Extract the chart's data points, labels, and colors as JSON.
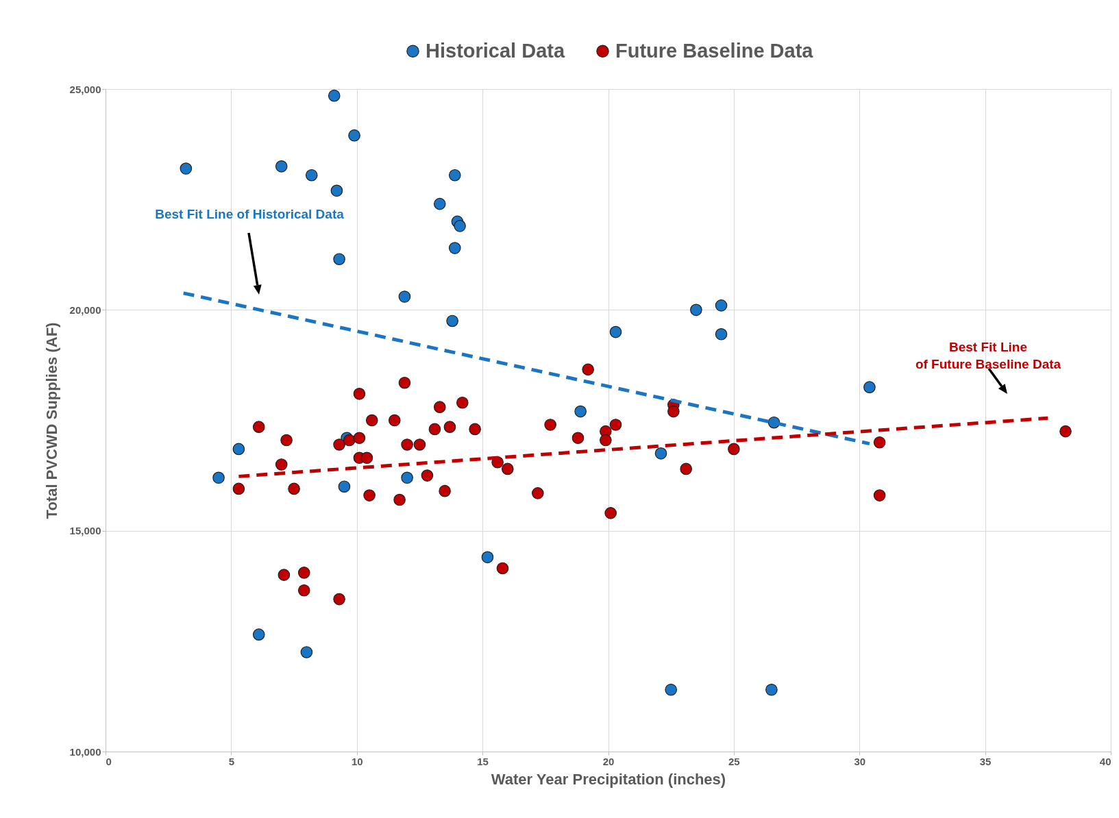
{
  "chart_data": {
    "type": "scatter",
    "xlabel": "Water Year Precipitation (inches)",
    "ylabel": "Total PVCWD Supplies (AF)",
    "xlim": [
      0,
      40
    ],
    "xticks": [
      0,
      5,
      10,
      15,
      20,
      25,
      30,
      35,
      40
    ],
    "ylim": [
      10000,
      25000
    ],
    "yticks": [
      {
        "value": 10000,
        "label": "10,000"
      },
      {
        "value": 15000,
        "label": "15,000"
      },
      {
        "value": 20000,
        "label": "20,000"
      },
      {
        "value": 25000,
        "label": "25,000"
      }
    ],
    "grid": true,
    "legend": "top",
    "marker": "circle",
    "series": [
      {
        "name": "Historical Data",
        "color": "#1a75c4",
        "x": [
          3.2,
          7.0,
          8.2,
          9.1,
          9.9,
          9.2,
          9.3,
          13.3,
          13.9,
          14.0,
          14.1,
          13.9,
          11.9,
          13.8,
          23.5,
          24.5,
          24.5,
          20.3,
          30.4,
          18.9,
          26.6,
          22.1,
          5.3,
          4.5,
          9.6,
          9.5,
          12.0,
          15.2,
          6.1,
          8.0,
          22.5,
          26.5
        ],
        "values": [
          23200,
          23250,
          23050,
          24850,
          23950,
          22700,
          21150,
          22400,
          23050,
          22000,
          21900,
          21400,
          20300,
          19750,
          20000,
          20100,
          19450,
          19500,
          18250,
          17700,
          17450,
          16750,
          16850,
          16200,
          17100,
          16000,
          16200,
          14400,
          12650,
          12250,
          11400,
          11400
        ]
      },
      {
        "name": "Future Baseline Data",
        "color": "#c00000",
        "x": [
          5.3,
          6.1,
          7.0,
          7.2,
          7.5,
          7.1,
          7.9,
          7.9,
          9.3,
          9.3,
          9.7,
          10.1,
          10.1,
          10.1,
          10.4,
          10.5,
          10.6,
          11.5,
          11.7,
          11.9,
          12.0,
          12.5,
          12.8,
          13.1,
          13.3,
          13.5,
          13.7,
          14.2,
          14.7,
          15.6,
          15.8,
          16.0,
          17.2,
          17.7,
          18.8,
          19.2,
          19.9,
          19.9,
          20.3,
          20.1,
          22.6,
          22.6,
          23.1,
          25.0,
          30.8,
          30.8,
          38.2
        ],
        "values": [
          15950,
          17350,
          16500,
          17050,
          15950,
          14000,
          14050,
          13650,
          13450,
          16950,
          17050,
          17100,
          18100,
          16650,
          16650,
          15800,
          17500,
          17500,
          15700,
          18350,
          16950,
          16950,
          16250,
          17300,
          17800,
          15900,
          17350,
          17900,
          17300,
          16550,
          14150,
          16400,
          15850,
          17400,
          17100,
          18650,
          17250,
          17050,
          17400,
          15400,
          17850,
          17700,
          16400,
          16850,
          17000,
          15800,
          17250
        ]
      },
      {
        "type": "line",
        "color": "#1a75c4",
        "line_style": "dashed",
        "marker": "none",
        "x": [
          3.1,
          30.4
        ],
        "values": [
          20380,
          16970
        ]
      },
      {
        "type": "line",
        "color": "#c00000",
        "line_style": "dashed",
        "marker": "none",
        "x": [
          5.3,
          37.5
        ],
        "values": [
          16230,
          17550
        ]
      }
    ],
    "annotations": [
      "Best Fit Line of Historical Data",
      "Best Fit Line\nof Future Baseline Data"
    ]
  }
}
